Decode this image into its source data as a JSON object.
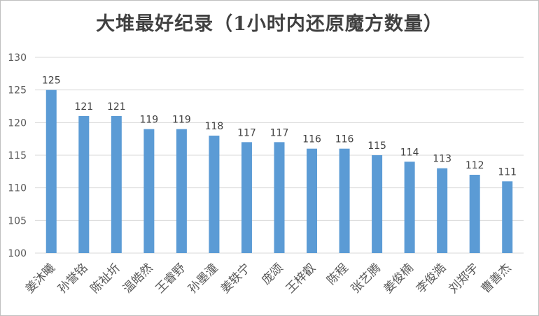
{
  "chart_data": {
    "type": "bar",
    "title": "大堆最好纪录（1小时内还原魔方数量）",
    "xlabel": "",
    "ylabel": "",
    "categories": [
      "姜沐曦",
      "孙誉铭",
      "陈祉圻",
      "温皓然",
      "王睿野",
      "孙墨潼",
      "姜轶宁",
      "庞颂",
      "王梓叡",
      "陈程",
      "张艺腾",
      "姜俊楠",
      "李俊澔",
      "刘郑宇",
      "曹善杰"
    ],
    "values": [
      125,
      121,
      121,
      119,
      119,
      118,
      117,
      117,
      116,
      116,
      115,
      114,
      113,
      112,
      111
    ],
    "ylim": [
      100,
      130
    ],
    "yticks": [
      100,
      105,
      110,
      115,
      120,
      125,
      130
    ],
    "grid": true,
    "legend": "none",
    "bar_color": "#5b9bd5",
    "grid_color": "#d9d9d9"
  }
}
